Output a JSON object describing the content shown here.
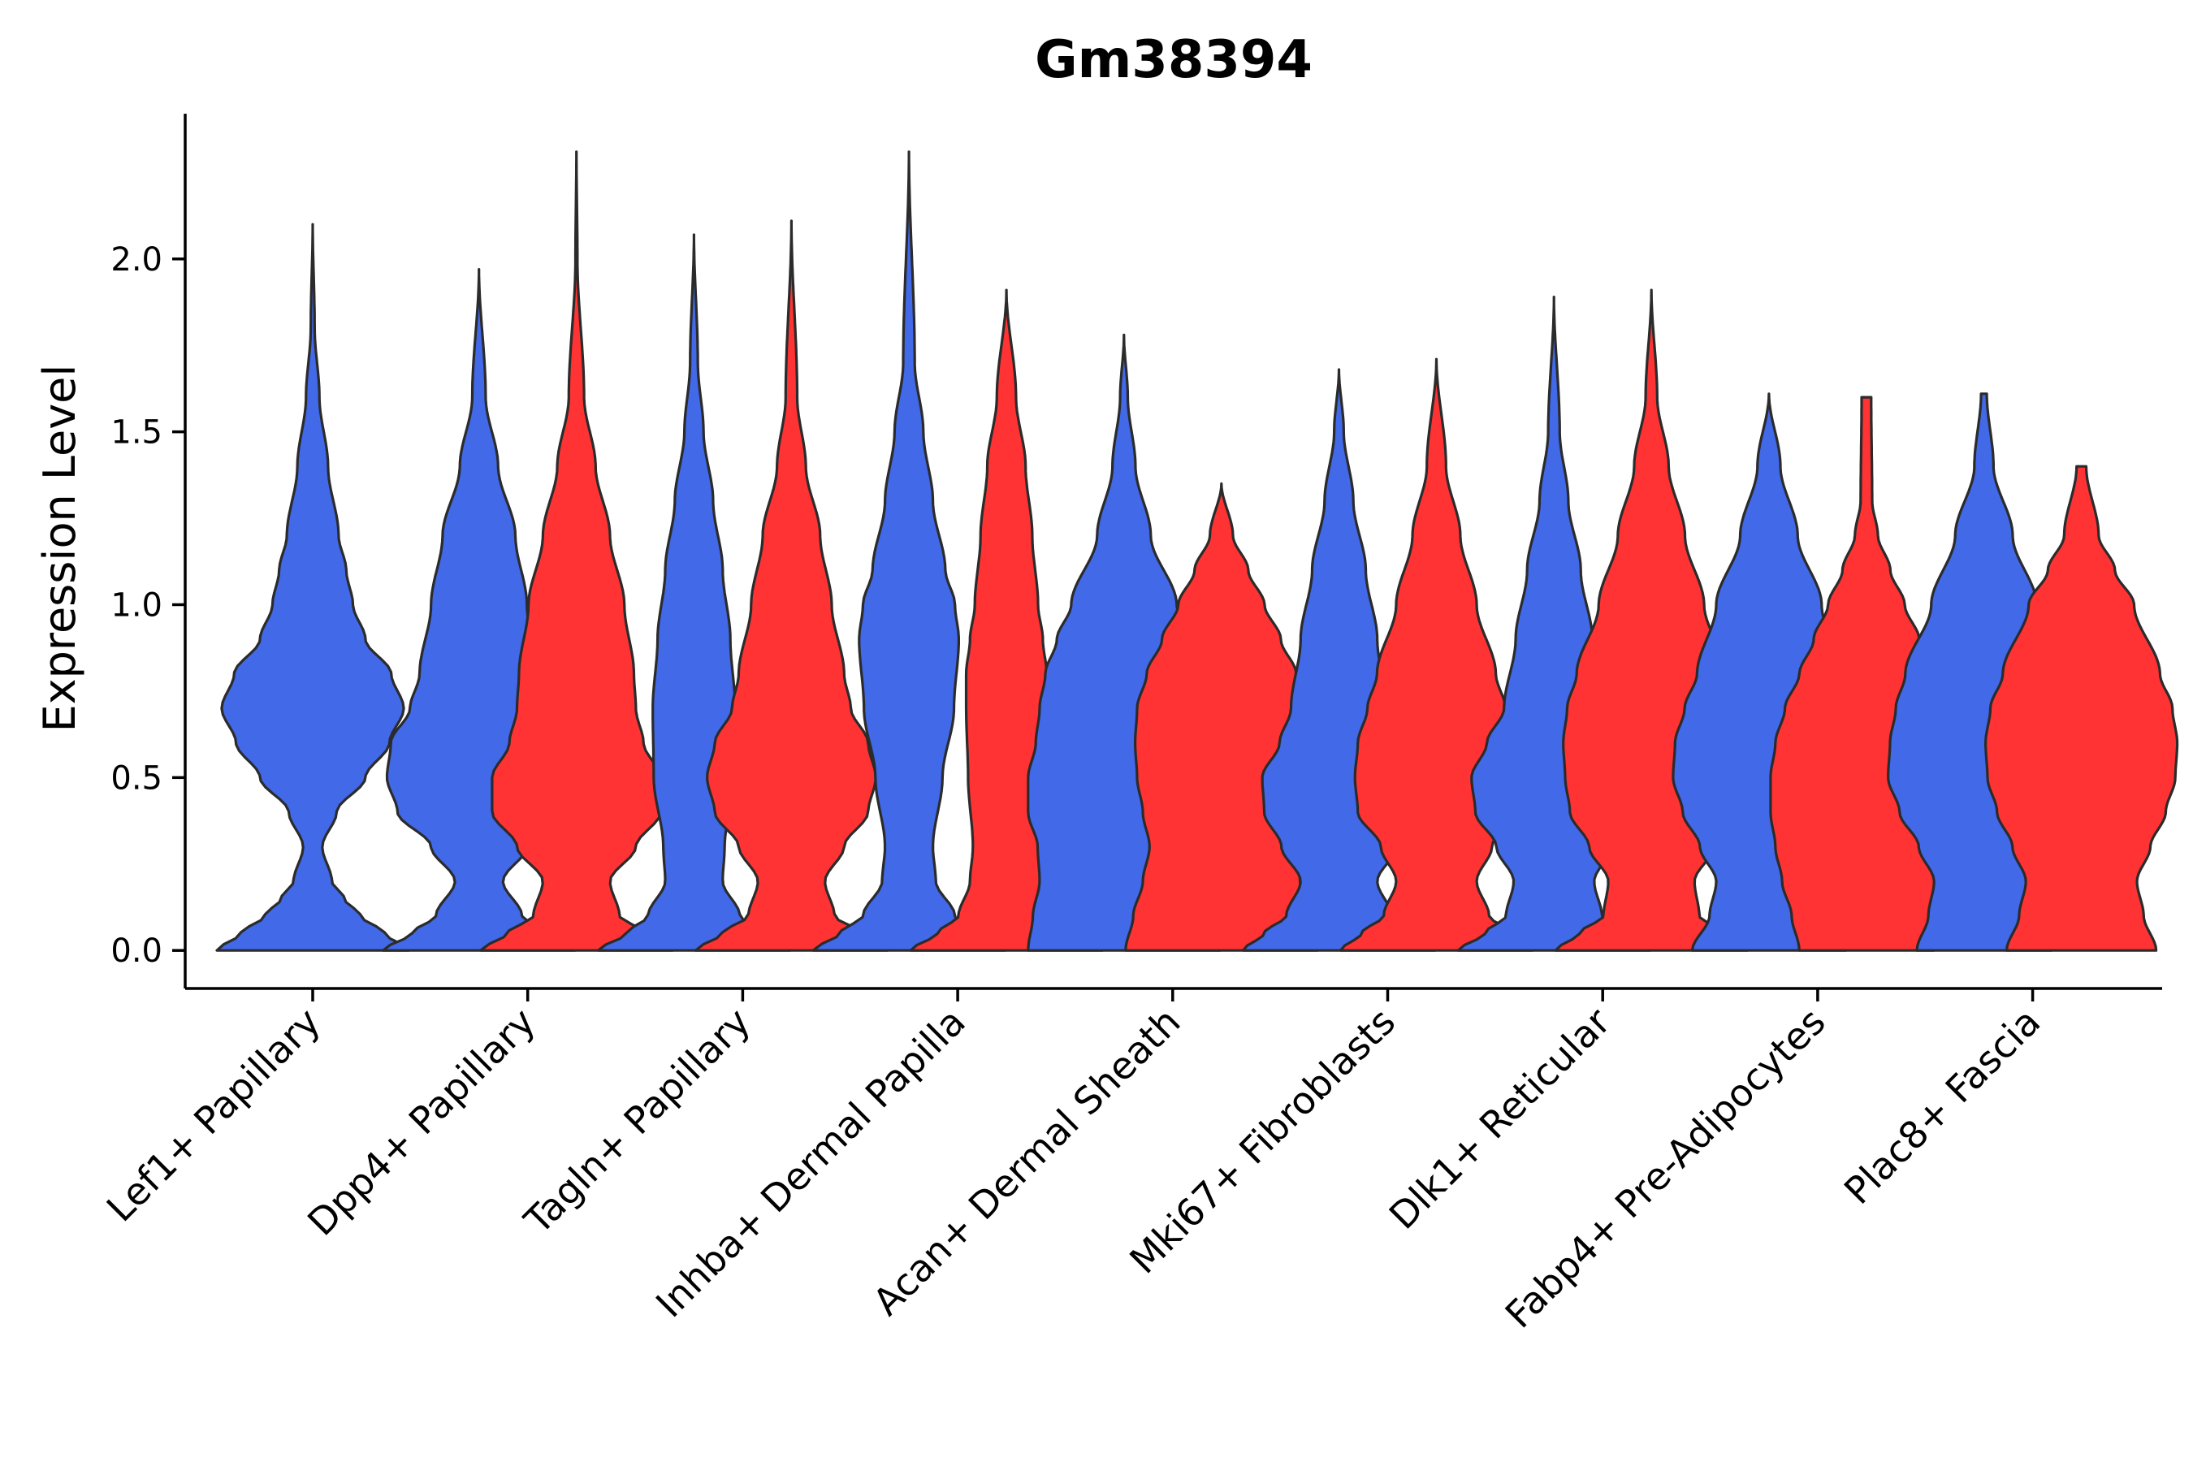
{
  "chart_data": {
    "type": "violin",
    "title": "Gm38394",
    "xlabel": "",
    "ylabel": "Expression Level",
    "ylim": [
      -0.11,
      2.42
    ],
    "yticks": [
      "0.0",
      "0.5",
      "1.0",
      "1.5",
      "2.0"
    ],
    "ytick_values": [
      0,
      0.5,
      1.0,
      1.5,
      2.0
    ],
    "grid": false,
    "legend": "none",
    "colors": {
      "blue": "#4169e8",
      "red": "#ff3333",
      "outline": "#2b2b2b"
    },
    "categories": [
      "Lef1+ Papillary",
      "Dpp4+ Papillary",
      "Tagln+ Papillary",
      "Inhba+ Dermal Papilla",
      "Acan+ Dermal Sheath",
      "Mki67+ Fibroblasts",
      "Dlk1+ Reticular",
      "Fabp4+ Pre-Adipocytes",
      "Plac8+ Fascia"
    ],
    "violins": [
      {
        "category": 0,
        "group": "blue",
        "offset": 0,
        "max": 2.1,
        "profile": [
          [
            0,
            1
          ],
          [
            0.05,
            0.75
          ],
          [
            0.1,
            0.5
          ],
          [
            0.15,
            0.33
          ],
          [
            0.2,
            0.2
          ],
          [
            0.3,
            0.1
          ],
          [
            0.4,
            0.25
          ],
          [
            0.5,
            0.55
          ],
          [
            0.6,
            0.8
          ],
          [
            0.7,
            0.95
          ],
          [
            0.8,
            0.82
          ],
          [
            0.9,
            0.55
          ],
          [
            1.0,
            0.42
          ],
          [
            1.1,
            0.35
          ],
          [
            1.2,
            0.27
          ],
          [
            1.4,
            0.16
          ],
          [
            1.6,
            0.07
          ],
          [
            1.8,
            0.02
          ],
          [
            2.1,
            0
          ]
        ]
      },
      {
        "category": 1,
        "group": "blue",
        "offset": -0.5,
        "max": 1.97,
        "profile": [
          [
            0,
            1
          ],
          [
            0.05,
            0.7
          ],
          [
            0.1,
            0.45
          ],
          [
            0.2,
            0.25
          ],
          [
            0.3,
            0.5
          ],
          [
            0.4,
            0.85
          ],
          [
            0.5,
            0.96
          ],
          [
            0.6,
            0.92
          ],
          [
            0.7,
            0.72
          ],
          [
            0.8,
            0.62
          ],
          [
            1.0,
            0.5
          ],
          [
            1.2,
            0.38
          ],
          [
            1.4,
            0.2
          ],
          [
            1.6,
            0.07
          ],
          [
            1.97,
            0
          ]
        ]
      },
      {
        "category": 1,
        "group": "red",
        "offset": 0.5,
        "max": 2.31,
        "profile": [
          [
            0,
            1
          ],
          [
            0.05,
            0.72
          ],
          [
            0.1,
            0.45
          ],
          [
            0.2,
            0.35
          ],
          [
            0.3,
            0.62
          ],
          [
            0.4,
            0.88
          ],
          [
            0.5,
            0.88
          ],
          [
            0.6,
            0.7
          ],
          [
            0.7,
            0.62
          ],
          [
            0.8,
            0.6
          ],
          [
            1.0,
            0.5
          ],
          [
            1.2,
            0.35
          ],
          [
            1.4,
            0.2
          ],
          [
            1.6,
            0.08
          ],
          [
            2.0,
            0.01
          ],
          [
            2.31,
            0
          ]
        ]
      },
      {
        "category": 2,
        "group": "blue",
        "offset": -0.5,
        "max": 2.07,
        "profile": [
          [
            0,
            1
          ],
          [
            0.05,
            0.7
          ],
          [
            0.1,
            0.48
          ],
          [
            0.2,
            0.3
          ],
          [
            0.3,
            0.32
          ],
          [
            0.5,
            0.42
          ],
          [
            0.7,
            0.43
          ],
          [
            0.9,
            0.38
          ],
          [
            1.1,
            0.3
          ],
          [
            1.3,
            0.2
          ],
          [
            1.5,
            0.1
          ],
          [
            1.7,
            0.04
          ],
          [
            2.07,
            0
          ]
        ]
      },
      {
        "category": 2,
        "group": "red",
        "offset": 0.5,
        "max": 2.11,
        "profile": [
          [
            0,
            1
          ],
          [
            0.05,
            0.72
          ],
          [
            0.1,
            0.45
          ],
          [
            0.2,
            0.35
          ],
          [
            0.3,
            0.55
          ],
          [
            0.4,
            0.8
          ],
          [
            0.5,
            0.88
          ],
          [
            0.6,
            0.8
          ],
          [
            0.7,
            0.62
          ],
          [
            0.8,
            0.55
          ],
          [
            1.0,
            0.42
          ],
          [
            1.2,
            0.3
          ],
          [
            1.4,
            0.15
          ],
          [
            1.6,
            0.06
          ],
          [
            2.11,
            0
          ]
        ]
      },
      {
        "category": 3,
        "group": "blue",
        "offset": -0.5,
        "max": 2.31,
        "profile": [
          [
            0,
            1
          ],
          [
            0.05,
            0.72
          ],
          [
            0.1,
            0.48
          ],
          [
            0.2,
            0.28
          ],
          [
            0.3,
            0.25
          ],
          [
            0.5,
            0.35
          ],
          [
            0.7,
            0.47
          ],
          [
            0.9,
            0.52
          ],
          [
            1.0,
            0.48
          ],
          [
            1.1,
            0.38
          ],
          [
            1.3,
            0.25
          ],
          [
            1.5,
            0.15
          ],
          [
            1.7,
            0.06
          ],
          [
            2.31,
            0
          ]
        ]
      },
      {
        "category": 3,
        "group": "red",
        "offset": 0.5,
        "max": 1.91,
        "profile": [
          [
            0,
            1
          ],
          [
            0.05,
            0.72
          ],
          [
            0.1,
            0.5
          ],
          [
            0.2,
            0.38
          ],
          [
            0.3,
            0.35
          ],
          [
            0.5,
            0.4
          ],
          [
            0.7,
            0.42
          ],
          [
            0.8,
            0.42
          ],
          [
            0.9,
            0.38
          ],
          [
            1.0,
            0.33
          ],
          [
            1.2,
            0.27
          ],
          [
            1.4,
            0.2
          ],
          [
            1.6,
            0.1
          ],
          [
            1.91,
            0
          ]
        ]
      },
      {
        "category": 4,
        "group": "blue",
        "offset": -0.5,
        "max": 1.78,
        "profile": [
          [
            0,
            1
          ],
          [
            0.1,
            0.95
          ],
          [
            0.2,
            0.88
          ],
          [
            0.3,
            0.9
          ],
          [
            0.4,
            1.0
          ],
          [
            0.5,
            1.0
          ],
          [
            0.6,
            0.92
          ],
          [
            0.7,
            0.88
          ],
          [
            0.8,
            0.82
          ],
          [
            0.9,
            0.7
          ],
          [
            1.0,
            0.55
          ],
          [
            1.2,
            0.28
          ],
          [
            1.4,
            0.12
          ],
          [
            1.6,
            0.04
          ],
          [
            1.78,
            0
          ]
        ]
      },
      {
        "category": 4,
        "group": "red",
        "offset": 0.5,
        "max": 1.35,
        "profile": [
          [
            0,
            1
          ],
          [
            0.1,
            0.92
          ],
          [
            0.2,
            0.82
          ],
          [
            0.3,
            0.75
          ],
          [
            0.4,
            0.82
          ],
          [
            0.5,
            0.88
          ],
          [
            0.6,
            0.9
          ],
          [
            0.7,
            0.88
          ],
          [
            0.8,
            0.78
          ],
          [
            0.9,
            0.62
          ],
          [
            1.0,
            0.45
          ],
          [
            1.1,
            0.28
          ],
          [
            1.2,
            0.12
          ],
          [
            1.35,
            0
          ]
        ]
      },
      {
        "category": 5,
        "group": "blue",
        "offset": -0.5,
        "max": 1.68,
        "profile": [
          [
            0,
            1
          ],
          [
            0.05,
            0.78
          ],
          [
            0.1,
            0.55
          ],
          [
            0.2,
            0.4
          ],
          [
            0.3,
            0.6
          ],
          [
            0.4,
            0.78
          ],
          [
            0.5,
            0.8
          ],
          [
            0.6,
            0.62
          ],
          [
            0.7,
            0.5
          ],
          [
            0.9,
            0.4
          ],
          [
            1.1,
            0.28
          ],
          [
            1.3,
            0.15
          ],
          [
            1.5,
            0.05
          ],
          [
            1.68,
            0
          ]
        ]
      },
      {
        "category": 5,
        "group": "red",
        "offset": 0.5,
        "max": 1.71,
        "profile": [
          [
            0,
            1
          ],
          [
            0.05,
            0.78
          ],
          [
            0.1,
            0.55
          ],
          [
            0.2,
            0.42
          ],
          [
            0.3,
            0.58
          ],
          [
            0.4,
            0.82
          ],
          [
            0.5,
            0.85
          ],
          [
            0.6,
            0.82
          ],
          [
            0.7,
            0.72
          ],
          [
            0.8,
            0.62
          ],
          [
            1.0,
            0.42
          ],
          [
            1.2,
            0.25
          ],
          [
            1.4,
            0.1
          ],
          [
            1.71,
            0
          ]
        ]
      },
      {
        "category": 6,
        "group": "blue",
        "offset": -0.5,
        "max": 1.89,
        "profile": [
          [
            0,
            1
          ],
          [
            0.05,
            0.72
          ],
          [
            0.1,
            0.5
          ],
          [
            0.2,
            0.42
          ],
          [
            0.3,
            0.6
          ],
          [
            0.4,
            0.82
          ],
          [
            0.5,
            0.86
          ],
          [
            0.6,
            0.7
          ],
          [
            0.7,
            0.52
          ],
          [
            0.9,
            0.4
          ],
          [
            1.1,
            0.28
          ],
          [
            1.3,
            0.15
          ],
          [
            1.5,
            0.06
          ],
          [
            1.89,
            0
          ]
        ]
      },
      {
        "category": 6,
        "group": "red",
        "offset": 0.5,
        "max": 1.91,
        "profile": [
          [
            0,
            1
          ],
          [
            0.05,
            0.75
          ],
          [
            0.1,
            0.5
          ],
          [
            0.2,
            0.45
          ],
          [
            0.3,
            0.65
          ],
          [
            0.4,
            0.85
          ],
          [
            0.5,
            0.9
          ],
          [
            0.6,
            0.92
          ],
          [
            0.7,
            0.88
          ],
          [
            0.8,
            0.78
          ],
          [
            1.0,
            0.55
          ],
          [
            1.2,
            0.35
          ],
          [
            1.4,
            0.18
          ],
          [
            1.6,
            0.06
          ],
          [
            1.91,
            0
          ]
        ]
      },
      {
        "category": 7,
        "group": "blue",
        "offset": -0.5,
        "max": 1.61,
        "profile": [
          [
            0,
            0.8
          ],
          [
            0.1,
            0.62
          ],
          [
            0.2,
            0.55
          ],
          [
            0.3,
            0.72
          ],
          [
            0.4,
            0.9
          ],
          [
            0.5,
            1.0
          ],
          [
            0.6,
            0.98
          ],
          [
            0.7,
            0.88
          ],
          [
            0.8,
            0.75
          ],
          [
            1.0,
            0.55
          ],
          [
            1.2,
            0.3
          ],
          [
            1.4,
            0.12
          ],
          [
            1.61,
            0
          ]
        ]
      },
      {
        "category": 7,
        "group": "red",
        "offset": 0.5,
        "max": 1.6,
        "profile": [
          [
            0,
            0.7
          ],
          [
            0.1,
            0.78
          ],
          [
            0.2,
            0.88
          ],
          [
            0.3,
            0.95
          ],
          [
            0.4,
            1.0
          ],
          [
            0.5,
            1.0
          ],
          [
            0.6,
            0.95
          ],
          [
            0.7,
            0.85
          ],
          [
            0.8,
            0.7
          ],
          [
            0.9,
            0.55
          ],
          [
            1.0,
            0.4
          ],
          [
            1.1,
            0.25
          ],
          [
            1.2,
            0.12
          ],
          [
            1.3,
            0.06
          ],
          [
            1.6,
            0.05
          ]
        ]
      },
      {
        "category": 8,
        "group": "blue",
        "offset": -0.5,
        "max": 1.61,
        "profile": [
          [
            0,
            0.7
          ],
          [
            0.1,
            0.58
          ],
          [
            0.2,
            0.52
          ],
          [
            0.3,
            0.68
          ],
          [
            0.4,
            0.88
          ],
          [
            0.5,
            1.0
          ],
          [
            0.6,
            0.98
          ],
          [
            0.7,
            0.92
          ],
          [
            0.8,
            0.82
          ],
          [
            1.0,
            0.55
          ],
          [
            1.2,
            0.3
          ],
          [
            1.4,
            0.1
          ],
          [
            1.61,
            0.03
          ]
        ]
      },
      {
        "category": 8,
        "group": "red",
        "offset": 0.5,
        "max": 1.4,
        "profile": [
          [
            0,
            0.78
          ],
          [
            0.1,
            0.65
          ],
          [
            0.2,
            0.58
          ],
          [
            0.3,
            0.72
          ],
          [
            0.4,
            0.88
          ],
          [
            0.5,
            0.98
          ],
          [
            0.6,
            1.0
          ],
          [
            0.7,
            0.95
          ],
          [
            0.8,
            0.82
          ],
          [
            1.0,
            0.55
          ],
          [
            1.1,
            0.35
          ],
          [
            1.2,
            0.18
          ],
          [
            1.4,
            0.05
          ]
        ]
      }
    ]
  }
}
